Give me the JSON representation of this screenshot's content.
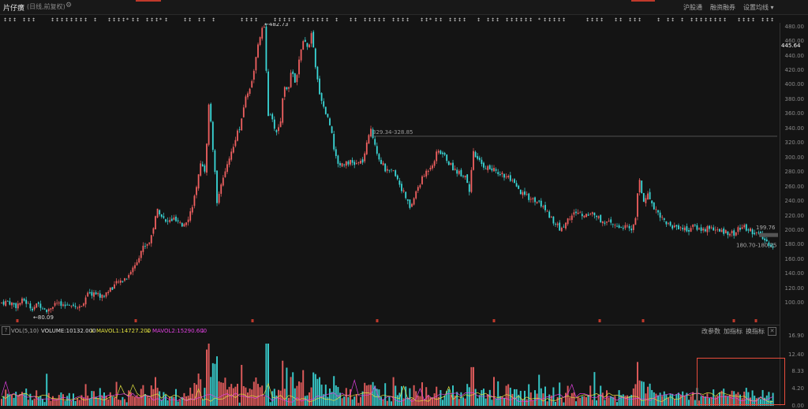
{
  "header": {
    "title": "片仔癀",
    "subtitle": "(日线,前复权)",
    "buttons": [
      "沪股通",
      "融资融券",
      "设置均线 ▾"
    ]
  },
  "price_axis": {
    "ticks": [
      "480.00",
      "460.00",
      "440.00",
      "420.00",
      "400.00",
      "380.00",
      "360.00",
      "340.00",
      "320.00",
      "300.00",
      "280.00",
      "260.00",
      "240.00",
      "220.00",
      "200.00",
      "180.00",
      "160.00",
      "140.00",
      "120.00",
      "100.00"
    ],
    "current_price": "445.64"
  },
  "annotations": {
    "high": "←482.73",
    "low": "←80.09",
    "range_label": "329.34-328.85",
    "right_label_1": "199.76",
    "right_label_2": "180.70-180.25"
  },
  "volume": {
    "header_name": "VOL(5,10)",
    "volume_label": "VOLUME:10132.000",
    "mavol1_label": "MAVOL1:14727.200",
    "mavol2_label": "MAVOL2:15290.600",
    "buttons": [
      "改参数",
      "加指标",
      "换指标"
    ],
    "axis_ticks": [
      "16.90",
      "12.40",
      "8.33",
      "4.20",
      "0.00"
    ]
  },
  "colors": {
    "up": "#f06060",
    "down": "#3ad8d8",
    "ma1": "#e0e040",
    "ma2": "#e040e0",
    "highlight": "#e74c3c"
  },
  "chart_data": {
    "type": "candlestick",
    "ylim": [
      70,
      485
    ],
    "y_ticks": [
      100,
      120,
      140,
      160,
      180,
      200,
      220,
      240,
      260,
      280,
      300,
      320,
      340,
      360,
      380,
      400,
      420,
      440,
      460,
      480
    ],
    "price_path_keypoints": [
      [
        0,
        100
      ],
      [
        10,
        102
      ],
      [
        20,
        96
      ],
      [
        30,
        104
      ],
      [
        40,
        93
      ],
      [
        50,
        98
      ],
      [
        60,
        90
      ],
      [
        70,
        100
      ],
      [
        80,
        94
      ],
      [
        90,
        100
      ],
      [
        100,
        92
      ],
      [
        110,
        110
      ],
      [
        120,
        114
      ],
      [
        130,
        108
      ],
      [
        140,
        120
      ],
      [
        150,
        128
      ],
      [
        160,
        135
      ],
      [
        170,
        150
      ],
      [
        180,
        175
      ],
      [
        190,
        185
      ],
      [
        200,
        230
      ],
      [
        210,
        210
      ],
      [
        220,
        215
      ],
      [
        230,
        205
      ],
      [
        240,
        220
      ],
      [
        250,
        260
      ],
      [
        255,
        300
      ],
      [
        260,
        275
      ],
      [
        265,
        380
      ],
      [
        270,
        310
      ],
      [
        275,
        240
      ],
      [
        280,
        265
      ],
      [
        285,
        275
      ],
      [
        290,
        300
      ],
      [
        295,
        310
      ],
      [
        300,
        335
      ],
      [
        305,
        340
      ],
      [
        310,
        380
      ],
      [
        315,
        390
      ],
      [
        320,
        410
      ],
      [
        325,
        440
      ],
      [
        330,
        470
      ],
      [
        335,
        480
      ],
      [
        340,
        360
      ],
      [
        345,
        350
      ],
      [
        350,
        335
      ],
      [
        355,
        345
      ],
      [
        360,
        400
      ],
      [
        365,
        395
      ],
      [
        370,
        420
      ],
      [
        375,
        400
      ],
      [
        380,
        440
      ],
      [
        385,
        460
      ],
      [
        390,
        450
      ],
      [
        395,
        470
      ],
      [
        400,
        420
      ],
      [
        405,
        390
      ],
      [
        410,
        370
      ],
      [
        415,
        355
      ],
      [
        420,
        340
      ],
      [
        425,
        300
      ],
      [
        430,
        290
      ],
      [
        440,
        295
      ],
      [
        450,
        290
      ],
      [
        460,
        295
      ],
      [
        470,
        340
      ],
      [
        475,
        320
      ],
      [
        480,
        300
      ],
      [
        490,
        280
      ],
      [
        500,
        280
      ],
      [
        510,
        255
      ],
      [
        520,
        230
      ],
      [
        530,
        260
      ],
      [
        540,
        280
      ],
      [
        550,
        295
      ],
      [
        555,
        310
      ],
      [
        565,
        300
      ],
      [
        570,
        290
      ],
      [
        580,
        280
      ],
      [
        590,
        275
      ],
      [
        595,
        255
      ],
      [
        600,
        305
      ],
      [
        610,
        290
      ],
      [
        620,
        285
      ],
      [
        630,
        280
      ],
      [
        640,
        275
      ],
      [
        650,
        265
      ],
      [
        660,
        250
      ],
      [
        670,
        245
      ],
      [
        680,
        240
      ],
      [
        690,
        230
      ],
      [
        700,
        215
      ],
      [
        710,
        200
      ],
      [
        720,
        215
      ],
      [
        730,
        225
      ],
      [
        740,
        220
      ],
      [
        750,
        225
      ],
      [
        760,
        215
      ],
      [
        770,
        210
      ],
      [
        780,
        205
      ],
      [
        790,
        205
      ],
      [
        800,
        200
      ],
      [
        805,
        215
      ],
      [
        810,
        270
      ],
      [
        815,
        240
      ],
      [
        820,
        250
      ],
      [
        830,
        230
      ],
      [
        840,
        215
      ],
      [
        850,
        205
      ],
      [
        860,
        205
      ],
      [
        870,
        200
      ],
      [
        880,
        205
      ],
      [
        890,
        200
      ],
      [
        900,
        205
      ],
      [
        910,
        198
      ],
      [
        920,
        198
      ],
      [
        930,
        195
      ],
      [
        940,
        205
      ],
      [
        950,
        200
      ],
      [
        960,
        195
      ],
      [
        970,
        185
      ],
      [
        980,
        178
      ]
    ],
    "volume_ylim": [
      0,
      16.9
    ],
    "volume_y_ticks": [
      0,
      4.2,
      8.33,
      12.4,
      16.9
    ]
  }
}
